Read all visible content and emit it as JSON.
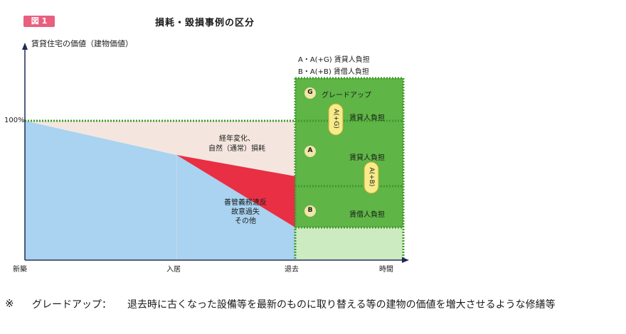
{
  "figure": {
    "badge": "図 1",
    "title": "損耗・毀損事例の区分",
    "y_axis_label": "賃貸住宅の価値（建物価値）",
    "y_tick_100": "100%"
  },
  "x_axis": {
    "ticks": [
      "新築",
      "入居",
      "退去",
      "時間"
    ]
  },
  "legend": {
    "line1": "A・A(+G) 賃貸人負担",
    "line2": "B・A(+B) 賃借人負担"
  },
  "regions": {
    "aging": {
      "line1": "経年変化、",
      "line2": "自然（通常）損耗"
    },
    "violation": {
      "line1": "善管義務違反",
      "line2": "故意過失",
      "line3": "その他"
    }
  },
  "cases": {
    "g": {
      "marker": "G",
      "label": "グレードアップ"
    },
    "g_burden": "賃貸人負担",
    "a": {
      "marker": "A",
      "label": "賃貸人負担"
    },
    "b": {
      "marker": "B",
      "label": "賃借人負担"
    }
  },
  "brackets": {
    "ag": "A(+G)",
    "ab": "A(+B)"
  },
  "footnote": {
    "mark": "※",
    "term": "グレードアップ：",
    "text": "退去時に古くなった設備等を最新のものに取り替える等の建物の価値を増大させるような修繕等"
  },
  "colors": {
    "value_area": "#a9d3f0",
    "aging_area": "#f4e6de",
    "violation_area": "#e82f44",
    "case_green": "#5fb546",
    "case_green_light": "#cdebc0",
    "dotted_border": "#3e9a2c",
    "axis": "#1c2a55",
    "badge": "#e8607e"
  }
}
